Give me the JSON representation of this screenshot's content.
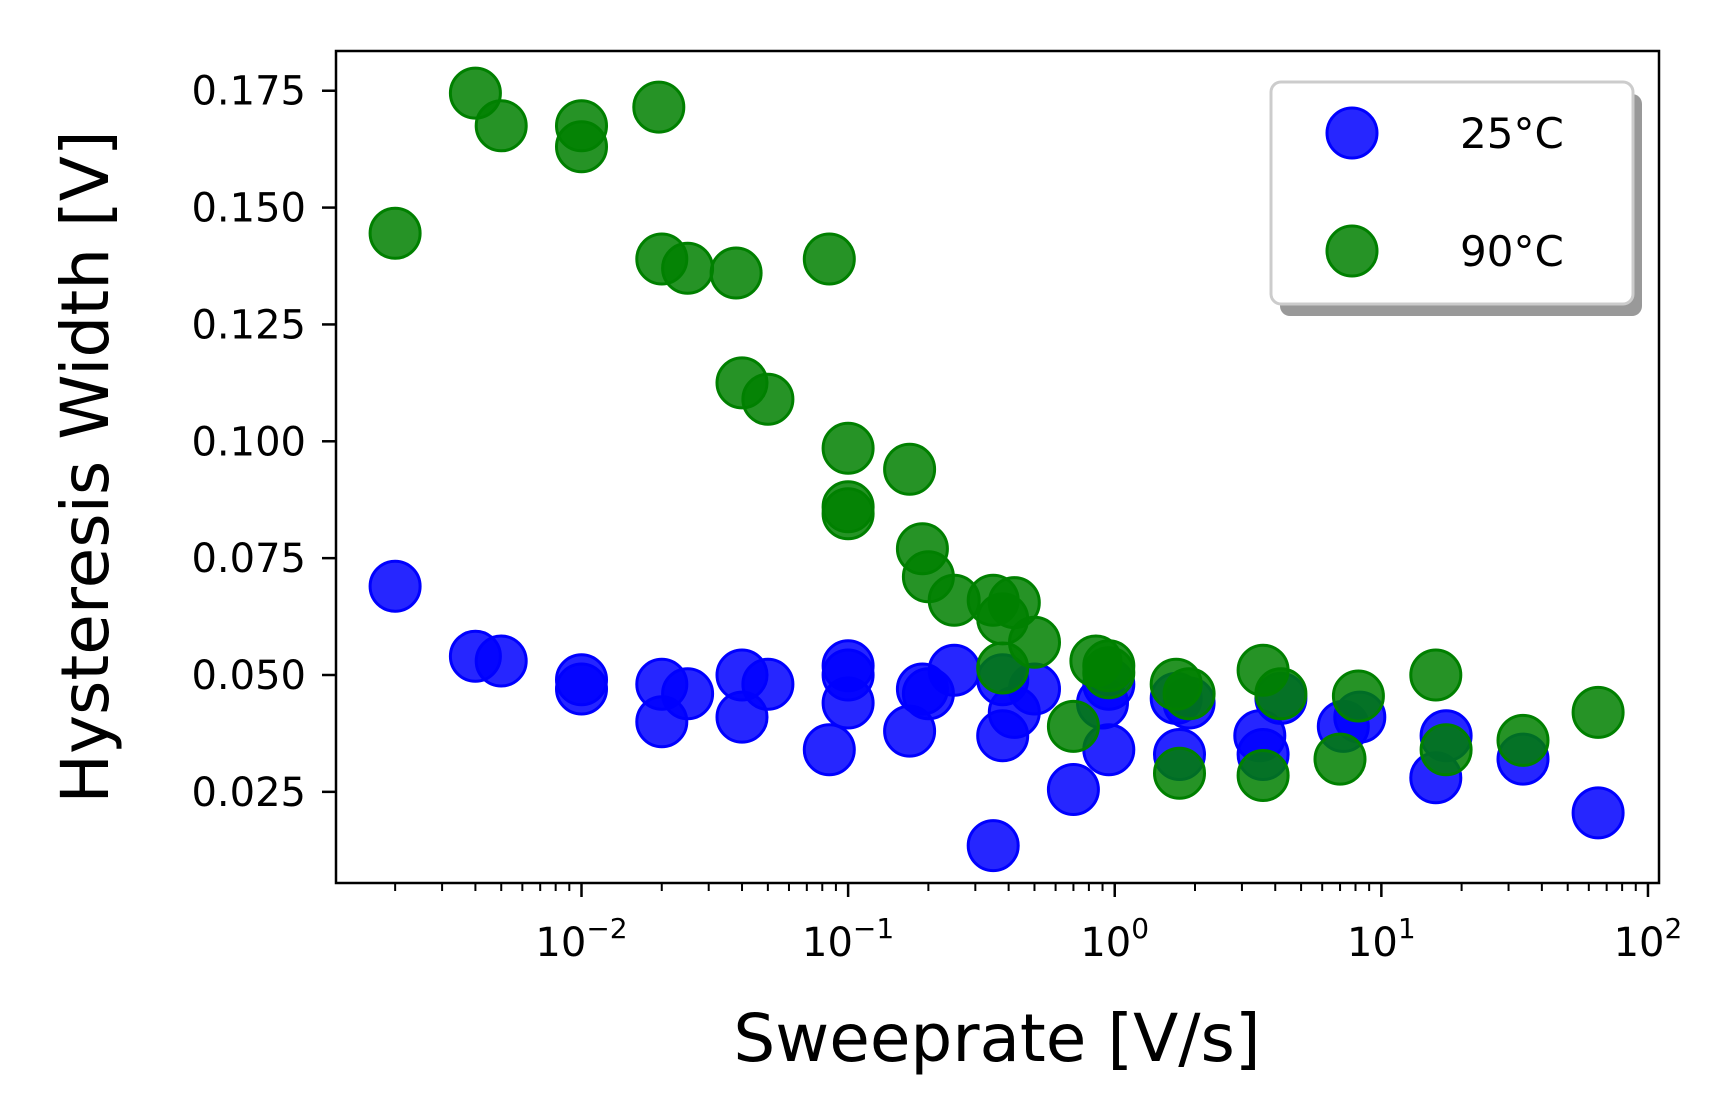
{
  "chart_data": {
    "type": "scatter",
    "title": "",
    "xlabel": "Sweeprate [V/s]",
    "ylabel": "Hysteresis Width [V]",
    "xscale": "log",
    "xlim": [
      0.0012,
      110
    ],
    "ylim": [
      0.0055,
      0.1835
    ],
    "x_ticks": [
      {
        "value": 0.01,
        "base": "10",
        "exp": "−2"
      },
      {
        "value": 0.1,
        "base": "10",
        "exp": "−1"
      },
      {
        "value": 1,
        "base": "10",
        "exp": "0"
      },
      {
        "value": 10,
        "base": "10",
        "exp": "1"
      },
      {
        "value": 100,
        "base": "10",
        "exp": "2"
      }
    ],
    "y_ticks": [
      {
        "value": 0.025,
        "label": "0.025"
      },
      {
        "value": 0.05,
        "label": "0.050"
      },
      {
        "value": 0.075,
        "label": "0.075"
      },
      {
        "value": 0.1,
        "label": "0.100"
      },
      {
        "value": 0.125,
        "label": "0.125"
      },
      {
        "value": 0.15,
        "label": "0.150"
      },
      {
        "value": 0.175,
        "label": "0.175"
      }
    ],
    "legend_position": "top-right",
    "series": [
      {
        "name": "25°C",
        "color": "#0000ff",
        "points": [
          [
            0.002,
            0.069
          ],
          [
            0.004,
            0.054
          ],
          [
            0.005,
            0.053
          ],
          [
            0.01,
            0.049
          ],
          [
            0.01,
            0.047
          ],
          [
            0.02,
            0.048
          ],
          [
            0.02,
            0.04
          ],
          [
            0.025,
            0.046
          ],
          [
            0.04,
            0.05
          ],
          [
            0.04,
            0.041
          ],
          [
            0.05,
            0.048
          ],
          [
            0.085,
            0.034
          ],
          [
            0.1,
            0.052
          ],
          [
            0.1,
            0.05
          ],
          [
            0.1,
            0.044
          ],
          [
            0.17,
            0.038
          ],
          [
            0.19,
            0.047
          ],
          [
            0.2,
            0.046
          ],
          [
            0.25,
            0.051
          ],
          [
            0.35,
            0.0135
          ],
          [
            0.38,
            0.049
          ],
          [
            0.38,
            0.037
          ],
          [
            0.42,
            0.042
          ],
          [
            0.5,
            0.047
          ],
          [
            0.7,
            0.0255
          ],
          [
            0.9,
            0.044
          ],
          [
            0.95,
            0.048
          ],
          [
            0.95,
            0.034
          ],
          [
            1.7,
            0.045
          ],
          [
            1.9,
            0.044
          ],
          [
            1.75,
            0.033
          ],
          [
            3.5,
            0.037
          ],
          [
            3.6,
            0.033
          ],
          [
            4.2,
            0.045
          ],
          [
            7.2,
            0.039
          ],
          [
            8.3,
            0.041
          ],
          [
            16,
            0.028
          ],
          [
            17.5,
            0.037
          ],
          [
            34,
            0.032
          ],
          [
            65,
            0.0205
          ]
        ]
      },
      {
        "name": "90°C",
        "color": "#008000",
        "points": [
          [
            0.002,
            0.1445
          ],
          [
            0.004,
            0.1745
          ],
          [
            0.005,
            0.1675
          ],
          [
            0.01,
            0.1675
          ],
          [
            0.01,
            0.163
          ],
          [
            0.0195,
            0.1715
          ],
          [
            0.02,
            0.139
          ],
          [
            0.025,
            0.137
          ],
          [
            0.038,
            0.136
          ],
          [
            0.04,
            0.1125
          ],
          [
            0.05,
            0.109
          ],
          [
            0.085,
            0.139
          ],
          [
            0.1,
            0.0985
          ],
          [
            0.1,
            0.086
          ],
          [
            0.1,
            0.0845
          ],
          [
            0.17,
            0.094
          ],
          [
            0.19,
            0.077
          ],
          [
            0.2,
            0.071
          ],
          [
            0.25,
            0.066
          ],
          [
            0.35,
            0.066
          ],
          [
            0.38,
            0.062
          ],
          [
            0.42,
            0.0655
          ],
          [
            0.5,
            0.057
          ],
          [
            0.38,
            0.0515
          ],
          [
            0.7,
            0.039
          ],
          [
            0.85,
            0.053
          ],
          [
            0.95,
            0.052
          ],
          [
            0.95,
            0.0505
          ],
          [
            1.7,
            0.048
          ],
          [
            1.9,
            0.046
          ],
          [
            1.75,
            0.029
          ],
          [
            3.6,
            0.051
          ],
          [
            3.6,
            0.0285
          ],
          [
            4.2,
            0.046
          ],
          [
            7.0,
            0.032
          ],
          [
            8.2,
            0.0455
          ],
          [
            16,
            0.05
          ],
          [
            17.5,
            0.034
          ],
          [
            34,
            0.036
          ],
          [
            65,
            0.042
          ]
        ]
      }
    ]
  }
}
